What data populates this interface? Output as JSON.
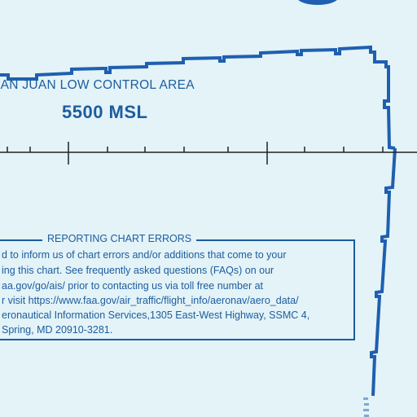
{
  "control_area": {
    "name": "SAN JUAN LOW CONTROL AREA",
    "floor": "5500 MSL"
  },
  "chart_errors_notice": {
    "heading": "REPORTING CHART ERRORS",
    "lines": [
      "d to inform us of chart errors and/or additions that come to your",
      "ing this chart. See frequently asked questions (FAQs) on our",
      "aa.gov/go/ais/ prior to contacting us via toll free number at",
      "r visit https://www.faa.gov/air_traffic/flight_info/aeronav/aero_data/",
      "eronautical Information Services,1305 East-West Highway, SSMC 4,",
      " Spring, MD 20910-3281."
    ]
  },
  "colors": {
    "background": "#e3f3f7",
    "chart_blue": "#1d5c9e",
    "boundary_blue": "#1f5fb0",
    "line_black": "#222222"
  }
}
